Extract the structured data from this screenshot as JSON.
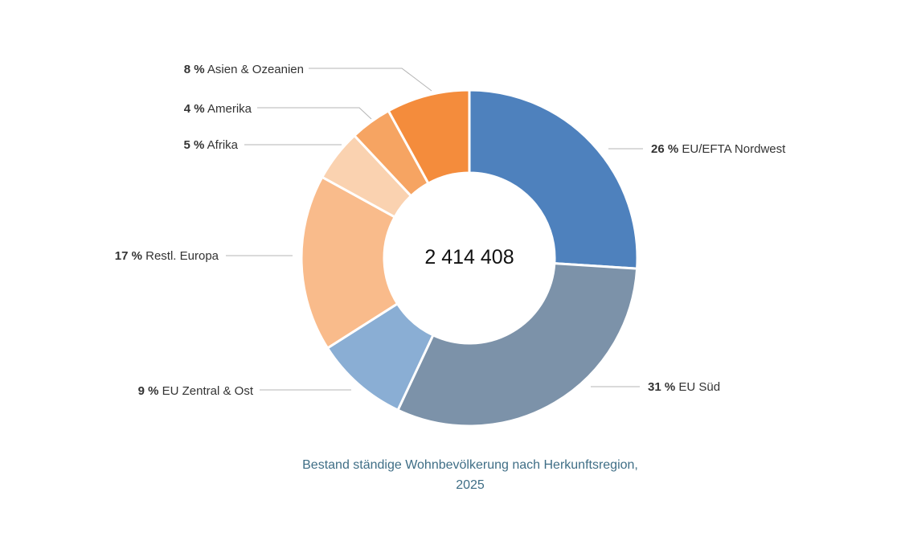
{
  "chart_data": {
    "type": "pie",
    "donut": true,
    "center_label": "2 414 408",
    "slices": [
      {
        "label": "EU/EFTA Nordwest",
        "pct_label": "26 %",
        "value": 26,
        "color": "#4e81bd"
      },
      {
        "label": "EU Süd",
        "pct_label": "31 %",
        "value": 31,
        "color": "#7c92a9"
      },
      {
        "label": "EU Zentral & Ost",
        "pct_label": "9 %",
        "value": 9,
        "color": "#8aaed4"
      },
      {
        "label": "Restl. Europa",
        "pct_label": "17 %",
        "value": 17,
        "color": "#f9bb8b"
      },
      {
        "label": "Afrika",
        "pct_label": "5 %",
        "value": 5,
        "color": "#fad2b0"
      },
      {
        "label": "Amerika",
        "pct_label": "4 %",
        "value": 4,
        "color": "#f6a462"
      },
      {
        "label": "Asien & Ozeanien",
        "pct_label": "8 %",
        "value": 8,
        "color": "#f48c3c"
      }
    ]
  },
  "caption": {
    "line1": "Bestand ständige Wohnbevölkerung nach Herkunftsregion,",
    "line2": "2025"
  }
}
